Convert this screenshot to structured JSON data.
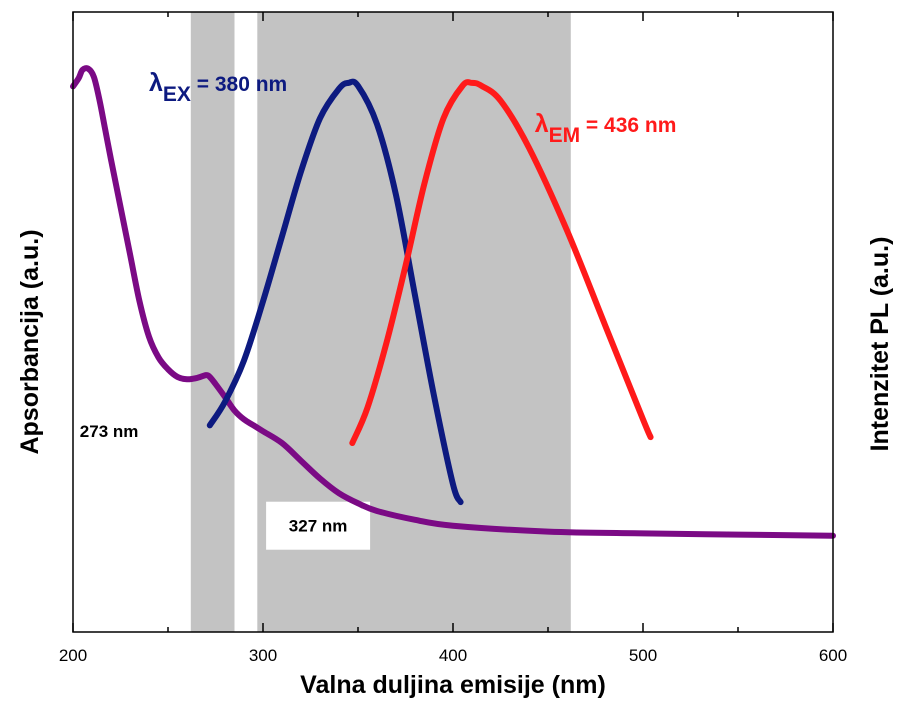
{
  "chart_data": {
    "type": "line",
    "xlabel": "Valna duljina emisije (nm)",
    "ylabel_left": "Apsorbancija (a.u.)",
    "ylabel_right": "Intenzitet PL (a.u.)",
    "xlim": [
      200,
      600
    ],
    "ylim": [
      0,
      1.05
    ],
    "x_ticks": [
      "200",
      "300",
      "400",
      "500",
      "600"
    ],
    "grid": false,
    "shaded_bands": [
      {
        "from": 262,
        "to": 285
      },
      {
        "from": 297,
        "to": 462
      }
    ],
    "annotations": [
      {
        "text": "273 nm",
        "x": 219,
        "y": 0.34
      },
      {
        "text": "327 nm",
        "x": 329,
        "y": 0.18
      }
    ],
    "peak_labels": [
      {
        "symbol": "λ",
        "subscript": "EX",
        "value": " = 380 nm",
        "color": "#0d1a80",
        "x": 240,
        "y": 0.93
      },
      {
        "symbol": "λ",
        "subscript": "EM",
        "value": " = 436 nm",
        "color": "#ff1a1a",
        "x": 443,
        "y": 0.86
      }
    ],
    "series": [
      {
        "color": "#7b0a85",
        "x": [
          200,
          203,
          205,
          208,
          211,
          214,
          217,
          220,
          225,
          230,
          235,
          240,
          245,
          250,
          255,
          260,
          265,
          270,
          272,
          275,
          280,
          285,
          290,
          295,
          300,
          310,
          320,
          330,
          340,
          350,
          360,
          380,
          400,
          450,
          500,
          550,
          600
        ],
        "y": [
          0.924,
          0.938,
          0.952,
          0.954,
          0.94,
          0.9,
          0.85,
          0.8,
          0.72,
          0.64,
          0.56,
          0.5,
          0.465,
          0.445,
          0.432,
          0.428,
          0.43,
          0.435,
          0.432,
          0.42,
          0.398,
          0.375,
          0.36,
          0.35,
          0.34,
          0.32,
          0.29,
          0.26,
          0.235,
          0.218,
          0.205,
          0.19,
          0.18,
          0.17,
          0.167,
          0.165,
          0.163
        ]
      },
      {
        "color": "#0d1a80",
        "x": [
          272,
          280,
          290,
          300,
          310,
          320,
          330,
          340,
          345,
          350,
          360,
          370,
          380,
          390,
          400,
          404
        ],
        "y": [
          0.35,
          0.39,
          0.46,
          0.56,
          0.67,
          0.78,
          0.87,
          0.92,
          0.93,
          0.925,
          0.86,
          0.74,
          0.57,
          0.4,
          0.25,
          0.22
        ]
      },
      {
        "color": "#ff1a1a",
        "x": [
          347,
          355,
          365,
          375,
          385,
          395,
          405,
          410,
          415,
          425,
          440,
          460,
          480,
          500,
          504
        ],
        "y": [
          0.32,
          0.38,
          0.49,
          0.62,
          0.76,
          0.87,
          0.925,
          0.93,
          0.925,
          0.9,
          0.82,
          0.68,
          0.52,
          0.36,
          0.33
        ]
      }
    ]
  }
}
